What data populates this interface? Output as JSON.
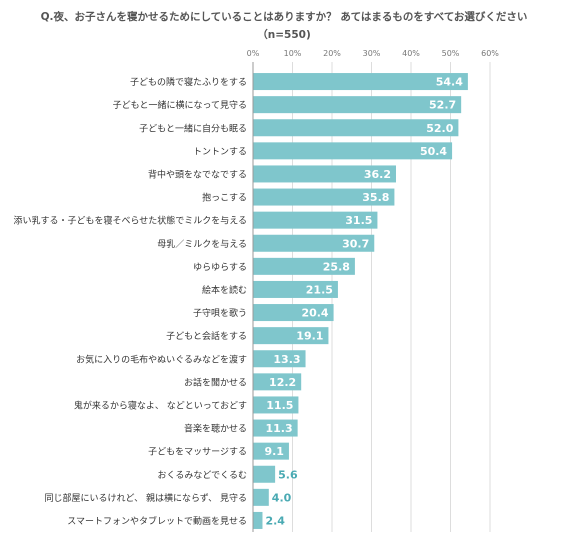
{
  "chart_data": {
    "type": "bar",
    "orientation": "horizontal",
    "title": "Q.夜、お子さんを寝かせるためにしていることはありますか？ あてはまるものをすべてお選びください",
    "subtitle": "（n=550)",
    "xlim": [
      0,
      60
    ],
    "xticks": [
      "0%",
      "10%",
      "20%",
      "30%",
      "40%",
      "50%",
      "60%"
    ],
    "grid": true,
    "bar_color": "#7fc6cc",
    "categories": [
      "子どもの隣で寝たふりをする",
      "子どもと一緒に横になって見守る",
      "子どもと一緒に自分も眠る",
      "トントンする",
      "背中や頭をなでなでする",
      "抱っこする",
      "添い乳する・子どもを寝そべらせた状態でミルクを与える",
      "母乳／ミルクを与える",
      "ゆらゆらする",
      "絵本を読む",
      "子守唄を歌う",
      "子どもと会話をする",
      "お気に入りの毛布やぬいぐるみなどを渡す",
      "お話を聞かせる",
      "鬼が来るから寝なよ、 などといっておどす",
      "音楽を聴かせる",
      "子どもをマッサージする",
      "おくるみなどでくるむ",
      "同じ部屋にいるけれど、 親は横にならず、 見守る",
      "スマートフォンやタブレットで動画を見せる"
    ],
    "values": [
      54.4,
      52.7,
      52.0,
      50.4,
      36.2,
      35.8,
      31.5,
      30.7,
      25.8,
      21.5,
      20.4,
      19.1,
      13.3,
      12.2,
      11.5,
      11.3,
      9.1,
      5.6,
      4.0,
      2.4
    ],
    "labels": [
      "54.4",
      "52.7",
      "52.0",
      "50.4",
      "36.2",
      "35.8",
      "31.5",
      "30.7",
      "25.8",
      "21.5",
      "20.4",
      "19.1",
      "13.3",
      "12.2",
      "11.5",
      "11.3",
      "9.1",
      "5.6",
      "4.0",
      "2.4"
    ]
  }
}
